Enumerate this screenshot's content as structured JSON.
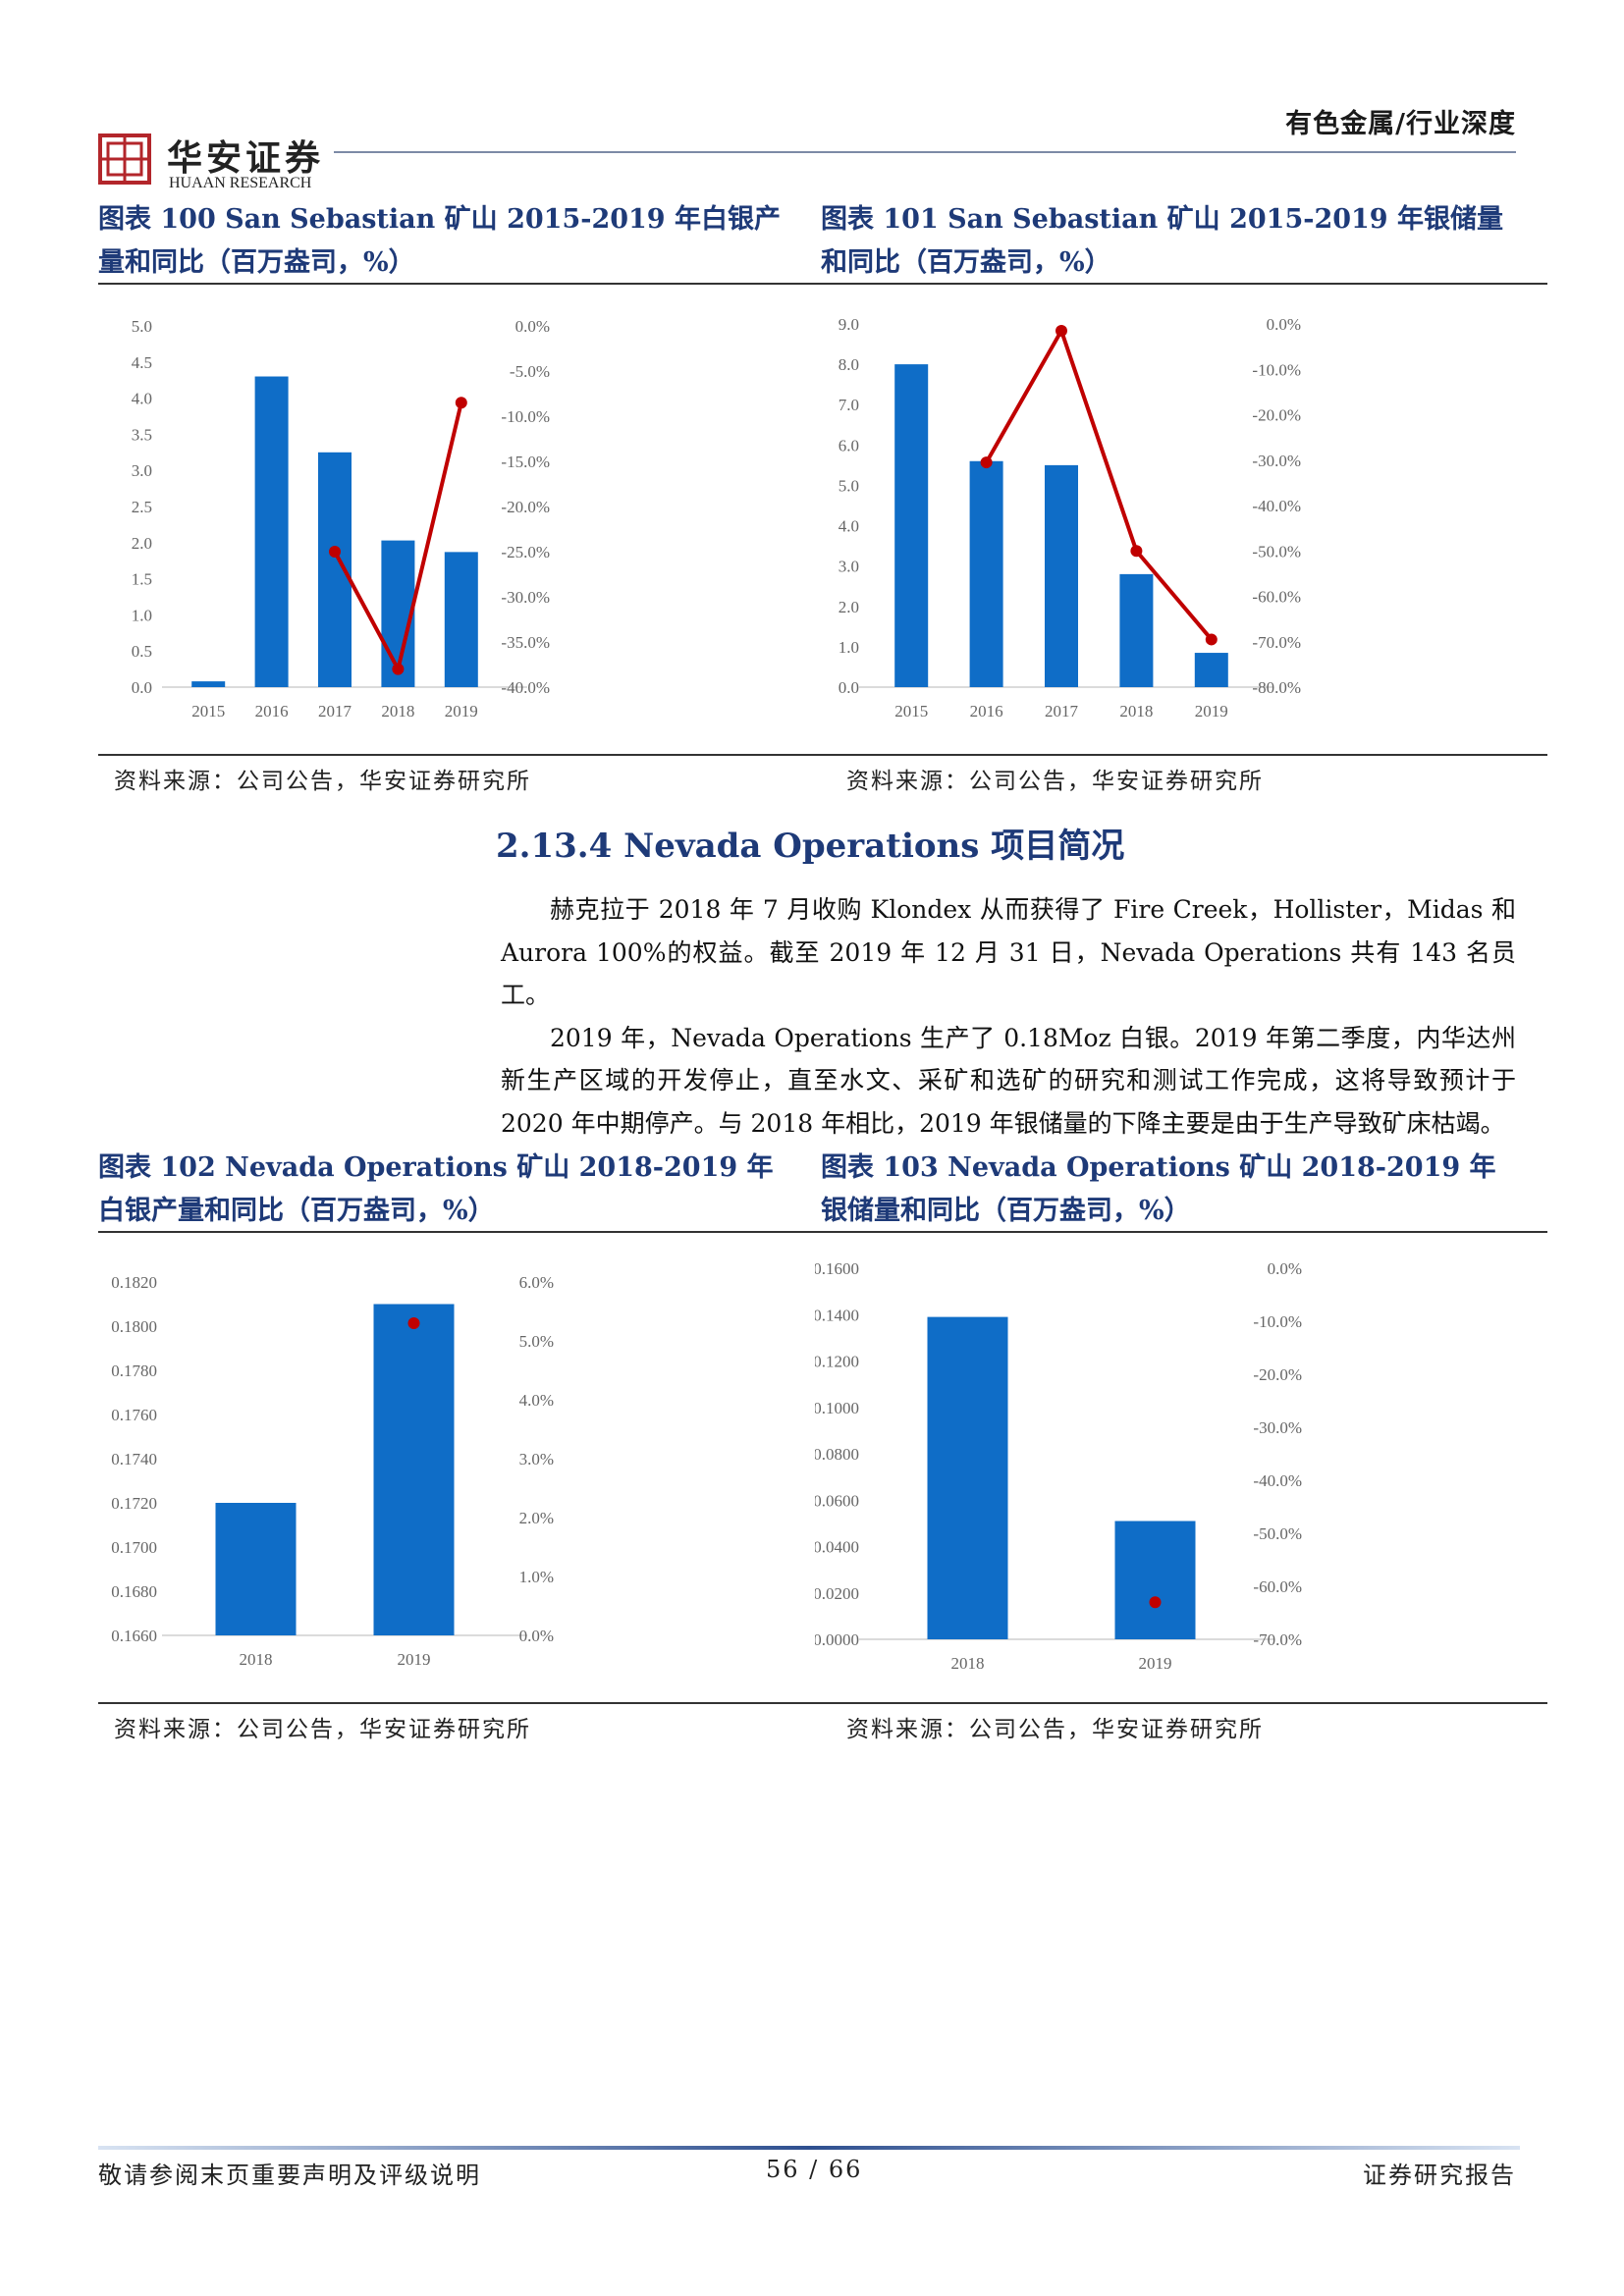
{
  "header": {
    "category": "有色金属/行业深度",
    "logo_name": "华安证券",
    "logo_sub": "HUAAN RESEARCH"
  },
  "figures": [
    {
      "title": "图表 100 San Sebastian 矿山  2015-2019 年白银产量和同比（百万盎司，%）",
      "source": "资料来源：公司公告，华安证券研究所"
    },
    {
      "title": "图表 101 San Sebastian 矿山  2015-2019 年银储量和同比（百万盎司，%）",
      "source": "资料来源：公司公告，华安证券研究所"
    },
    {
      "title": "图表 102 Nevada Operations 矿山  2018-2019 年白银产量和同比（百万盎司，%）",
      "source": "资料来源：公司公告，华安证券研究所"
    },
    {
      "title": "图表 103 Nevada Operations 矿山  2018-2019 年银储量和同比（百万盎司，%）",
      "source": "资料来源：公司公告，华安证券研究所"
    }
  ],
  "section": {
    "title": "2.13.4 Nevada Operations 项目简况",
    "paragraphs": [
      "赫克拉于 2018 年 7 月收购 Klondex 从而获得了 Fire Creek，Hollister，Midas 和 Aurora 100%的权益。截至 2019 年 12 月 31 日，Nevada Operations 共有 143 名员工。",
      "2019 年，Nevada Operations 生产了 0.18Moz 白银。2019 年第二季度，内华达州新生产区域的开发停止，直至水文、采矿和选矿的研究和测试工作完成，这将导致预计于 2020 年中期停产。与 2018 年相比，2019 年银储量的下降主要是由于生产导致矿床枯竭。"
    ]
  },
  "footer": {
    "left": "敬请参阅末页重要声明及评级说明",
    "page": "56 / 66",
    "right": "证券研究报告"
  },
  "colors": {
    "bar": "#0f6dc7",
    "line": "#c00000",
    "title": "#1e3a78"
  },
  "chart_data": [
    {
      "type": "bar",
      "categories": [
        "2015",
        "2016",
        "2017",
        "2018",
        "2019"
      ],
      "series": [
        {
          "axis": "left",
          "type": "bar",
          "values": [
            0.08,
            4.3,
            3.25,
            2.03,
            1.87
          ]
        },
        {
          "axis": "right",
          "type": "line",
          "values": [
            null,
            null,
            -25.0,
            -38.0,
            -8.5
          ]
        }
      ],
      "ylim": [
        0,
        5
      ],
      "y_ticks": [
        "0.0",
        "0.5",
        "1.0",
        "1.5",
        "2.0",
        "2.5",
        "3.0",
        "3.5",
        "4.0",
        "4.5",
        "5.0"
      ],
      "y2lim": [
        -40,
        0
      ],
      "y2_ticks": [
        "-40.0%",
        "-35.0%",
        "-30.0%",
        "-25.0%",
        "-20.0%",
        "-15.0%",
        "-10.0%",
        "-5.0%",
        "0.0%"
      ],
      "grid": false,
      "legend": "none"
    },
    {
      "type": "bar",
      "categories": [
        "2015",
        "2016",
        "2017",
        "2018",
        "2019"
      ],
      "series": [
        {
          "axis": "left",
          "type": "bar",
          "values": [
            8.0,
            5.6,
            5.5,
            2.8,
            0.85
          ]
        },
        {
          "axis": "right",
          "type": "line",
          "values": [
            null,
            -30.5,
            -1.5,
            -50.0,
            -69.5
          ]
        }
      ],
      "ylim": [
        0,
        9
      ],
      "y_ticks": [
        "0.0",
        "1.0",
        "2.0",
        "3.0",
        "4.0",
        "5.0",
        "6.0",
        "7.0",
        "8.0",
        "9.0"
      ],
      "y2lim": [
        -80,
        0
      ],
      "y2_ticks": [
        "-80.0%",
        "-70.0%",
        "-60.0%",
        "-50.0%",
        "-40.0%",
        "-30.0%",
        "-20.0%",
        "-10.0%",
        "0.0%"
      ],
      "grid": false,
      "legend": "none"
    },
    {
      "type": "bar",
      "categories": [
        "2018",
        "2019"
      ],
      "series": [
        {
          "axis": "left",
          "type": "bar",
          "values": [
            0.172,
            0.181
          ]
        },
        {
          "axis": "right",
          "type": "line",
          "values": [
            null,
            5.3
          ]
        }
      ],
      "ylim": [
        0.166,
        0.182
      ],
      "y_ticks": [
        "0.1660",
        "0.1680",
        "0.1700",
        "0.1720",
        "0.1740",
        "0.1760",
        "0.1780",
        "0.1800",
        "0.1820"
      ],
      "y2lim": [
        0,
        6
      ],
      "y2_ticks": [
        "0.0%",
        "1.0%",
        "2.0%",
        "3.0%",
        "4.0%",
        "5.0%",
        "6.0%"
      ],
      "grid": false,
      "legend": "none"
    },
    {
      "type": "bar",
      "categories": [
        "2018",
        "2019"
      ],
      "series": [
        {
          "axis": "left",
          "type": "bar",
          "values": [
            0.139,
            0.051
          ]
        },
        {
          "axis": "right",
          "type": "line",
          "values": [
            null,
            -63.0
          ]
        }
      ],
      "ylim": [
        0,
        0.16
      ],
      "y_ticks": [
        "0.0000",
        "0.0200",
        "0.0400",
        "0.0600",
        "0.0800",
        "0.1000",
        "0.1200",
        "0.1400",
        "0.1600"
      ],
      "y2lim": [
        -70,
        0
      ],
      "y2_ticks": [
        "-70.0%",
        "-60.0%",
        "-50.0%",
        "-40.0%",
        "-30.0%",
        "-20.0%",
        "-10.0%",
        "0.0%"
      ],
      "grid": false,
      "legend": "none"
    }
  ]
}
